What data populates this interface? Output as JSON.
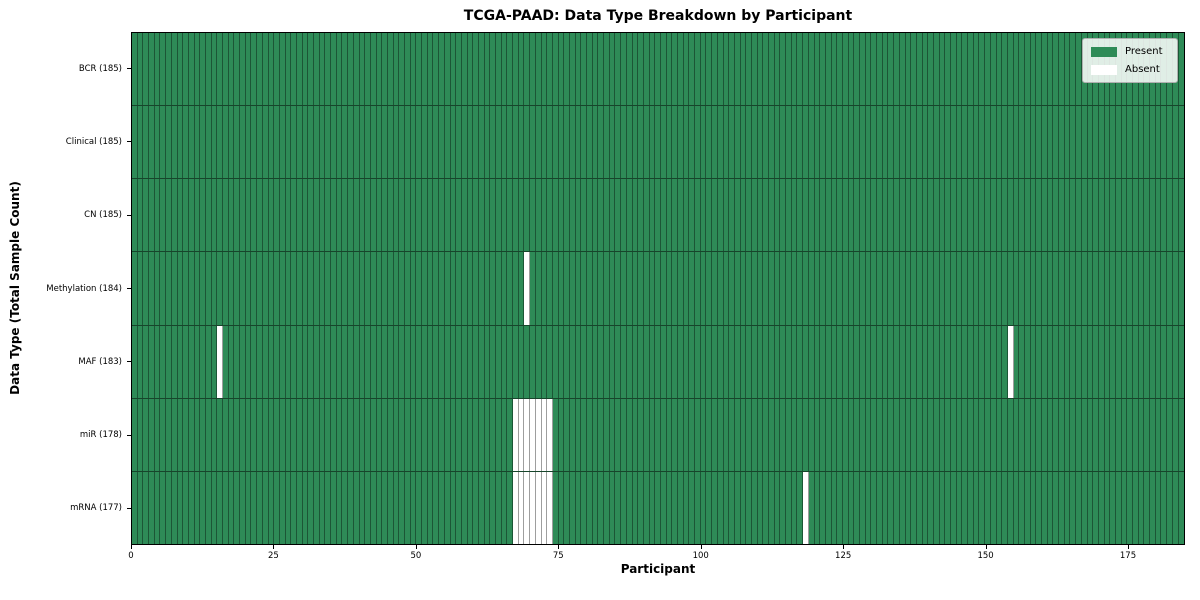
{
  "chart_data": {
    "type": "heatmap",
    "title": "TCGA-PAAD: Data Type Breakdown by Participant",
    "xlabel": "Participant",
    "ylabel": "Data Type (Total Sample Count)",
    "xlim": [
      0,
      185
    ],
    "x_ticks": [
      0,
      25,
      50,
      75,
      100,
      125,
      150,
      175
    ],
    "n_participants": 185,
    "legend": {
      "position": "upper right",
      "entries": [
        {
          "label": "Present",
          "color": "#2e8b57"
        },
        {
          "label": "Absent",
          "color": "#ffffff"
        }
      ]
    },
    "rows": [
      {
        "label": "BCR (185)",
        "data_type": "BCR",
        "total_samples": 185,
        "absent_participants": []
      },
      {
        "label": "Clinical (185)",
        "data_type": "Clinical",
        "total_samples": 185,
        "absent_participants": []
      },
      {
        "label": "CN (185)",
        "data_type": "CN",
        "total_samples": 185,
        "absent_participants": []
      },
      {
        "label": "Methylation (184)",
        "data_type": "Methylation",
        "total_samples": 184,
        "absent_participants": [
          69
        ]
      },
      {
        "label": "MAF (183)",
        "data_type": "MAF",
        "total_samples": 183,
        "absent_participants": [
          15,
          154
        ]
      },
      {
        "label": "miR (178)",
        "data_type": "miR",
        "total_samples": 178,
        "absent_participants": [
          67,
          68,
          69,
          70,
          71,
          72,
          73
        ]
      },
      {
        "label": "mRNA (177)",
        "data_type": "mRNA",
        "total_samples": 177,
        "absent_participants": [
          67,
          68,
          69,
          70,
          71,
          72,
          73,
          118
        ]
      }
    ],
    "colors": {
      "present": "#2e8b57",
      "absent": "#ffffff",
      "cell_edge": "rgba(0,0,0,0.38)",
      "row_separator": "rgba(0,0,0,0.5)",
      "spine": "#000000",
      "background": "#ffffff"
    }
  }
}
